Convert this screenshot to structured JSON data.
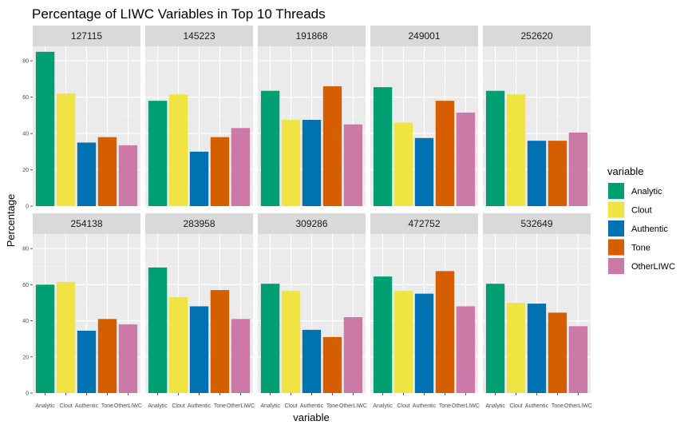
{
  "chart_data": {
    "type": "bar",
    "title": "Percentage of LIWC Variables in Top 10 Threads",
    "xlabel": "variable",
    "ylabel": "Percentage",
    "ylim": [
      0,
      88
    ],
    "yticks": [
      0,
      20,
      40,
      60,
      80
    ],
    "categories": [
      "Analytic",
      "Clout",
      "Authentic",
      "Tone",
      "OtherLIWC"
    ],
    "legend": {
      "title": "variable",
      "position": "right",
      "entries": [
        "Analytic",
        "Clout",
        "Authentic",
        "Tone",
        "OtherLIWC"
      ]
    },
    "colors": {
      "Analytic": "#009E73",
      "Clout": "#F0E442",
      "Authentic": "#0072B2",
      "Tone": "#D55E00",
      "OtherLIWC": "#CC79A7"
    },
    "facets": [
      {
        "id": "127115",
        "values": [
          85,
          62,
          35,
          38,
          33.5
        ]
      },
      {
        "id": "145223",
        "values": [
          58,
          61.5,
          30,
          38,
          43
        ]
      },
      {
        "id": "191868",
        "values": [
          63.5,
          47.5,
          47.5,
          66,
          45
        ]
      },
      {
        "id": "249001",
        "values": [
          65.5,
          46,
          37.5,
          58,
          51.5
        ]
      },
      {
        "id": "252620",
        "values": [
          63.5,
          61.5,
          36,
          36,
          40.5
        ]
      },
      {
        "id": "254138",
        "values": [
          60,
          61.5,
          34.5,
          41,
          38
        ]
      },
      {
        "id": "283958",
        "values": [
          69.5,
          53,
          48,
          57,
          41
        ]
      },
      {
        "id": "309286",
        "values": [
          60.5,
          56.5,
          35,
          31,
          42
        ]
      },
      {
        "id": "472752",
        "values": [
          64.5,
          56.5,
          55,
          67.5,
          48
        ]
      },
      {
        "id": "532649",
        "values": [
          60.5,
          50,
          49.5,
          44.5,
          37
        ]
      }
    ]
  }
}
